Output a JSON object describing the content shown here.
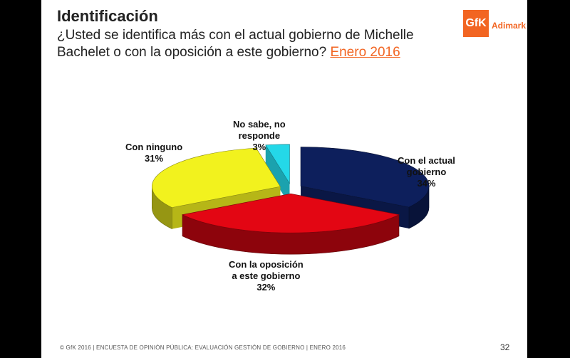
{
  "header": {
    "title": "Identificación",
    "question": "¿Usted se identifica más con el actual gobierno de Michelle Bachelet o con la oposición a este gobierno?",
    "date_link": "Enero 2016"
  },
  "logo": {
    "mark": "GfK",
    "text": "Adimark"
  },
  "chart_data": {
    "type": "pie",
    "title": "",
    "categories": [
      "Con el actual gobierno",
      "Con la oposición a este gobierno",
      "Con ninguno",
      "No sabe, no responde"
    ],
    "values": [
      34,
      32,
      31,
      3
    ],
    "colors": [
      "#0d1f5c",
      "#e30613",
      "#f2f21e",
      "#24d8e8"
    ],
    "labels": [
      {
        "line1": "Con el actual",
        "line2": "gobierno",
        "pct": "34%"
      },
      {
        "line1": "Con la oposición",
        "line2": "a este gobierno",
        "pct": "32%"
      },
      {
        "line1": "Con ninguno",
        "line2": "",
        "pct": "31%"
      },
      {
        "line1": "No sabe, no",
        "line2": "responde",
        "pct": "3%"
      }
    ],
    "style": "3d-exploded"
  },
  "footer": {
    "text": "© GfK 2016 | ENCUESTA DE OPINIÓN PÚBLICA: EVALUACIÓN GESTIÓN DE GOBIERNO | ENERO 2016",
    "page": "32"
  }
}
